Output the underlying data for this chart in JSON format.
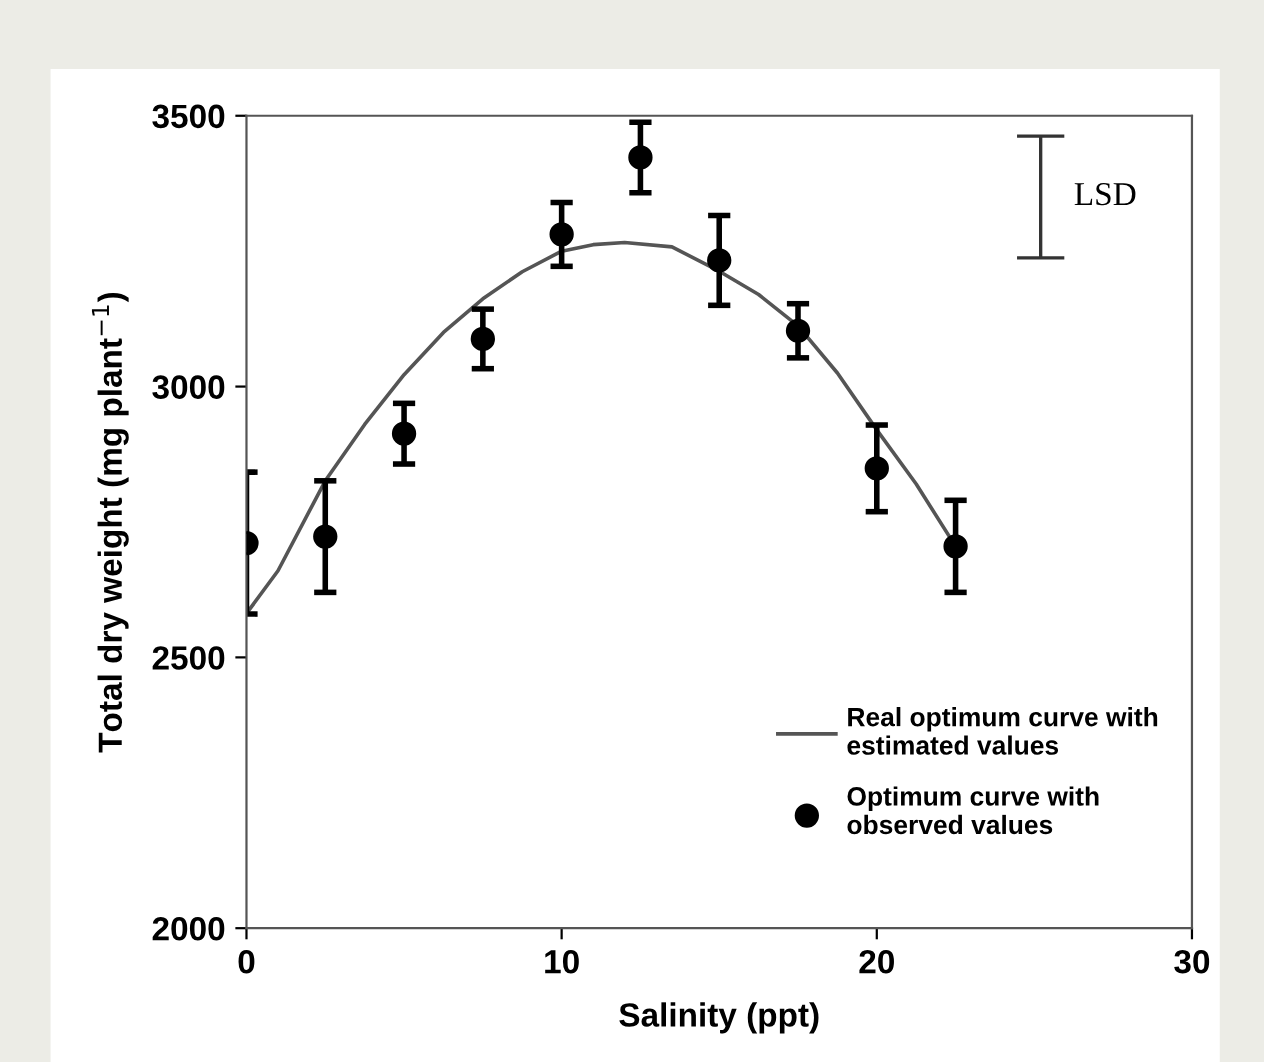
{
  "chart_data": {
    "type": "scatter",
    "xlabel": "Salinity (ppt)",
    "ylabel": "Total dry weight (mg plant$^{−1}$)",
    "xlim": [
      0,
      30
    ],
    "ylim": [
      2000,
      3500
    ],
    "xticks": [
      0,
      10,
      20,
      30
    ],
    "yticks": [
      2000,
      2500,
      3000,
      3500
    ],
    "grid": false,
    "legend": "bottom right",
    "series": [
      {
        "name": "Real optimum curve with\nestimated values",
        "type": "line",
        "color": "#555555",
        "marker": "none",
        "x": [
          0,
          1,
          2.5,
          3.75,
          5,
          6.25,
          7.5,
          8.75,
          10,
          11,
          12,
          13.5,
          15,
          16.25,
          17.5,
          18.75,
          20,
          21.25,
          22.5
        ],
        "values": [
          2581,
          2660,
          2826,
          2930,
          3022,
          3100,
          3162,
          3212,
          3250,
          3262,
          3266,
          3258,
          3213,
          3170,
          3112,
          3025,
          2920,
          2820,
          2705
        ]
      },
      {
        "name": "Optimum curve with\nobserved values",
        "color": "#000000",
        "marker": "circle",
        "x": [
          0,
          2.5,
          5,
          7.5,
          10,
          12.5,
          15,
          17.5,
          20,
          22.5
        ],
        "values": [
          2711,
          2723,
          2913,
          3088,
          3281,
          3423,
          3233,
          3103,
          2849,
          2705
        ],
        "errors": [
          131,
          103,
          56,
          55,
          59,
          65,
          83,
          50,
          80,
          85
        ]
      }
    ],
    "annotations": [
      "LSD"
    ]
  }
}
